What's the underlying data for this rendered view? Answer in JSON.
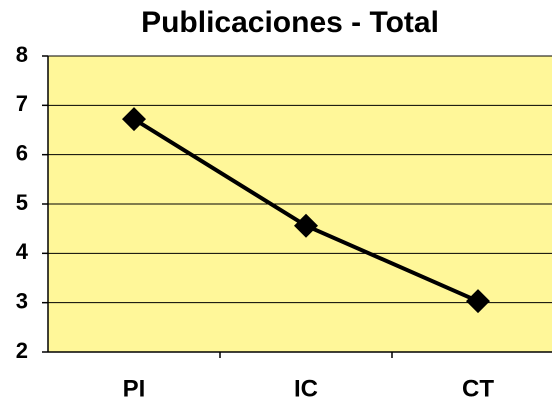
{
  "chart_data": {
    "type": "line",
    "title": "Publicaciones - Total",
    "categories": [
      "PI",
      "IC",
      "CT"
    ],
    "values": [
      6.72,
      4.56,
      3.03
    ],
    "color": "#000000",
    "plot_color": "#FFF799",
    "ylim": [
      2,
      8
    ],
    "yticks": [
      2,
      3,
      4,
      5,
      6,
      7,
      8
    ],
    "grid": true
  }
}
